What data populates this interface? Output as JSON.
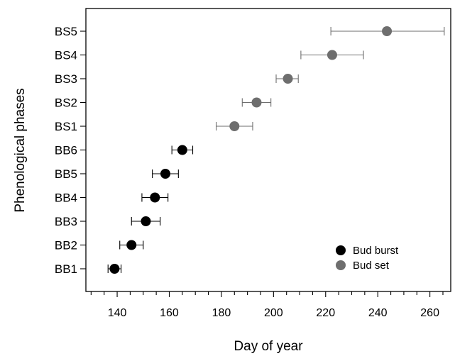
{
  "chart_data": {
    "type": "scatter",
    "title": "",
    "xlabel": "Day of year",
    "ylabel": "Phenological phases",
    "xlim": [
      128,
      268
    ],
    "xticks": [
      140,
      160,
      180,
      200,
      220,
      240,
      260
    ],
    "xminor_step": 5,
    "grid": false,
    "legend_position": "bottom-right",
    "categories": [
      "BB1",
      "BB2",
      "BB3",
      "BB4",
      "BB5",
      "BB6",
      "BS1",
      "BS2",
      "BS3",
      "BS4",
      "BS5"
    ],
    "series": [
      {
        "name": "Bud burst",
        "color": "#000000",
        "points": [
          {
            "phase": "BB1",
            "x": 139,
            "xmin": 136.5,
            "xmax": 141.5
          },
          {
            "phase": "BB2",
            "x": 145.5,
            "xmin": 141,
            "xmax": 150
          },
          {
            "phase": "BB3",
            "x": 151,
            "xmin": 145.5,
            "xmax": 156.5
          },
          {
            "phase": "BB4",
            "x": 154.5,
            "xmin": 149.5,
            "xmax": 159.5
          },
          {
            "phase": "BB5",
            "x": 158.5,
            "xmin": 153.5,
            "xmax": 163.5
          },
          {
            "phase": "BB6",
            "x": 165,
            "xmin": 161,
            "xmax": 169
          }
        ]
      },
      {
        "name": "Bud set",
        "color": "#6e6e6e",
        "points": [
          {
            "phase": "BS1",
            "x": 185,
            "xmin": 178,
            "xmax": 192
          },
          {
            "phase": "BS2",
            "x": 193.5,
            "xmin": 188,
            "xmax": 199
          },
          {
            "phase": "BS3",
            "x": 205.5,
            "xmin": 201,
            "xmax": 209.5
          },
          {
            "phase": "BS4",
            "x": 222.5,
            "xmin": 210.5,
            "xmax": 234.5
          },
          {
            "phase": "BS5",
            "x": 243.5,
            "xmin": 222,
            "xmax": 265.5
          }
        ]
      }
    ]
  }
}
